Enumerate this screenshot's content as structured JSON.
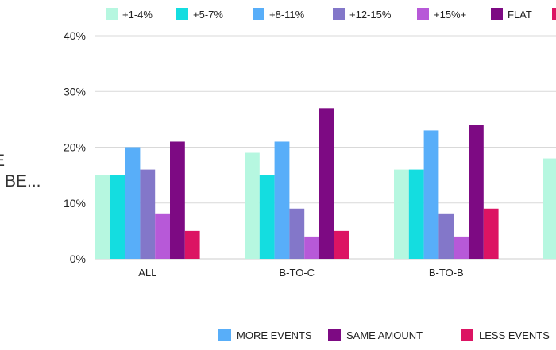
{
  "side_text": [
    "E",
    "BE..."
  ],
  "chart_data": {
    "type": "bar",
    "categories": [
      "ALL",
      "B-TO-C",
      "B-TO-B",
      ""
    ],
    "ylim": [
      0,
      40
    ],
    "yticks": [
      "0%",
      "10%",
      "20%",
      "30%",
      "40%"
    ],
    "grid": true,
    "legend_top": "top",
    "series": [
      {
        "name": "+1-4%",
        "color": "#b6f7e0",
        "values": [
          15,
          19,
          16,
          18
        ]
      },
      {
        "name": "+5-7%",
        "color": "#14dde0",
        "values": [
          15,
          15,
          16,
          null
        ]
      },
      {
        "name": "+8-11%",
        "color": "#58aef9",
        "values": [
          20,
          21,
          23,
          null
        ]
      },
      {
        "name": "+12-15%",
        "color": "#8377c9",
        "values": [
          16,
          9,
          8,
          null
        ]
      },
      {
        "name": "+15%+",
        "color": "#b759d8",
        "values": [
          8,
          4,
          4,
          null
        ]
      },
      {
        "name": "FLAT",
        "color": "#7d0a83",
        "values": [
          21,
          27,
          24,
          null
        ]
      },
      {
        "name": "",
        "color": "#dc1463",
        "values": [
          5,
          5,
          9,
          null
        ]
      }
    ],
    "bottom_legend": [
      {
        "name": "MORE EVENTS",
        "color": "#58aef9"
      },
      {
        "name": "SAME AMOUNT",
        "color": "#7d0a83"
      },
      {
        "name": "LESS EVENTS",
        "color": "#dc1463"
      }
    ]
  }
}
